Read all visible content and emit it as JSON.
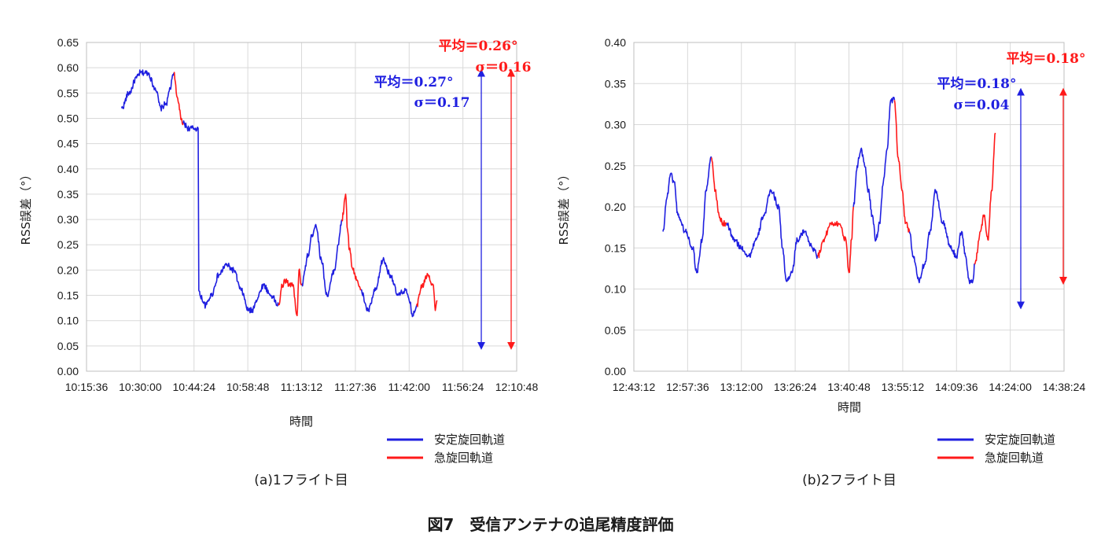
{
  "figure_caption": "図7　受信アンテナの追尾精度評価",
  "colors": {
    "stable": "#1f1fe0",
    "sharp": "#ff1a1a",
    "grid": "#d9d9d9"
  },
  "chart_data": [
    {
      "type": "line",
      "subtitle": "(a)1フライト目",
      "xlabel": "時間",
      "ylabel": "RSS誤差（°）",
      "ylim": [
        0,
        0.65
      ],
      "yticks": [
        "0.00",
        "0.05",
        "0.10",
        "0.15",
        "0.20",
        "0.25",
        "0.30",
        "0.35",
        "0.40",
        "0.45",
        "0.50",
        "0.55",
        "0.60",
        "0.65"
      ],
      "xlim": [
        "10:15:36",
        "12:10:48"
      ],
      "xticks": [
        "10:15:36",
        "10:30:00",
        "10:44:24",
        "10:58:48",
        "11:13:12",
        "11:27:36",
        "11:42:00",
        "11:56:24",
        "12:10:48"
      ],
      "grid": true,
      "legend": {
        "placement": "bottom-right",
        "entries": [
          "安定旋回軌道",
          "急旋回軌道"
        ]
      },
      "series": [
        {
          "name": "安定旋回軌道",
          "color": "#1f1fe0",
          "segments": [
            {
              "x": [
                "10:25:00",
                "10:27:00",
                "10:29:00",
                "10:30:00",
                "10:32:00",
                "10:34:00",
                "10:35:30",
                "10:37:00",
                "10:38:00",
                "10:39:00"
              ],
              "y": [
                0.52,
                0.55,
                0.58,
                0.59,
                0.59,
                0.56,
                0.52,
                0.53,
                0.56,
                0.59
              ]
            },
            {
              "x": [
                "10:41:30",
                "10:43:00",
                "10:44:24",
                "10:45:30",
                "10:45:40",
                "10:46:00",
                "10:47:30",
                "10:49:00",
                "10:51:00",
                "10:53:00",
                "10:55:00",
                "10:57:00",
                "10:59:00",
                "11:00:00",
                "11:01:00",
                "11:03:00",
                "11:05:00",
                "11:07:00"
              ],
              "y": [
                0.49,
                0.48,
                0.48,
                0.48,
                0.16,
                0.15,
                0.13,
                0.15,
                0.19,
                0.21,
                0.2,
                0.16,
                0.12,
                0.12,
                0.14,
                0.17,
                0.15,
                0.13
              ]
            },
            {
              "x": [
                "11:13:12",
                "11:15:00",
                "11:16:00",
                "11:17:00",
                "11:18:30",
                "11:20:00",
                "11:22:00",
                "11:23:00",
                "11:24:00"
              ],
              "y": [
                0.17,
                0.23,
                0.27,
                0.29,
                0.22,
                0.15,
                0.2,
                0.25,
                0.3
              ]
            },
            {
              "x": [
                "11:29:00",
                "11:31:00",
                "11:33:00",
                "11:35:00",
                "11:37:00",
                "11:39:00",
                "11:41:00",
                "11:42:00",
                "11:43:00",
                "11:44:00"
              ],
              "y": [
                0.16,
                0.12,
                0.16,
                0.22,
                0.19,
                0.15,
                0.16,
                0.14,
                0.11,
                0.13
              ]
            }
          ]
        },
        {
          "name": "急旋回軌道",
          "color": "#ff1a1a",
          "segments": [
            {
              "x": [
                "10:39:00",
                "10:40:00",
                "10:41:00",
                "10:41:30"
              ],
              "y": [
                0.59,
                0.54,
                0.5,
                0.49
              ]
            },
            {
              "x": [
                "11:07:00",
                "11:08:00",
                "11:09:00",
                "11:10:00",
                "11:11:00",
                "11:11:40",
                "11:12:00",
                "11:12:30",
                "11:13:12"
              ],
              "y": [
                0.13,
                0.17,
                0.18,
                0.17,
                0.17,
                0.12,
                0.11,
                0.2,
                0.17
              ]
            },
            {
              "x": [
                "11:24:00",
                "11:25:00",
                "11:25:30",
                "11:26:00",
                "11:27:00",
                "11:28:00",
                "11:29:00"
              ],
              "y": [
                0.3,
                0.35,
                0.28,
                0.24,
                0.2,
                0.18,
                0.16
              ]
            },
            {
              "x": [
                "11:44:00",
                "11:45:30",
                "11:47:00",
                "11:48:30",
                "11:49:00",
                "11:49:30"
              ],
              "y": [
                0.13,
                0.17,
                0.19,
                0.17,
                0.12,
                0.14
              ]
            }
          ]
        }
      ],
      "annotations": {
        "blue": {
          "mean": "平均＝0.27°",
          "sigma": "σ＝0.17",
          "arrow_range": [
            0.05,
            0.59
          ]
        },
        "red": {
          "mean": "平均＝0.26°",
          "sigma": "σ＝0.16",
          "arrow_range": [
            0.05,
            0.59
          ]
        }
      }
    },
    {
      "type": "line",
      "subtitle": "(b)2フライト目",
      "xlabel": "時間",
      "ylabel": "RSS誤差（°）",
      "ylim": [
        0,
        0.4
      ],
      "yticks": [
        "0.00",
        "0.05",
        "0.10",
        "0.15",
        "0.20",
        "0.25",
        "0.30",
        "0.35",
        "0.40"
      ],
      "xlim": [
        "12:43:12",
        "14:38:24"
      ],
      "xticks": [
        "12:43:12",
        "12:57:36",
        "13:12:00",
        "13:26:24",
        "13:40:48",
        "13:55:12",
        "14:09:36",
        "14:24:00",
        "14:38:24"
      ],
      "grid": true,
      "legend": {
        "placement": "bottom-right",
        "entries": [
          "安定旋回軌道",
          "急旋回軌道"
        ]
      },
      "series": [
        {
          "name": "安定旋回軌道",
          "color": "#1f1fe0",
          "segments": [
            {
              "x": [
                "12:51:00",
                "12:52:00",
                "12:53:00",
                "12:54:00",
                "12:55:00",
                "12:57:00",
                "12:59:00",
                "13:00:00",
                "13:01:30",
                "13:02:30",
                "13:04:00"
              ],
              "y": [
                0.17,
                0.21,
                0.24,
                0.23,
                0.19,
                0.17,
                0.15,
                0.12,
                0.16,
                0.22,
                0.26
              ]
            },
            {
              "x": [
                "13:08:00",
                "13:10:00",
                "13:12:00",
                "13:14:00",
                "13:16:00",
                "13:18:00",
                "13:20:00",
                "13:22:00",
                "13:23:00",
                "13:24:00",
                "13:25:30",
                "13:27:00",
                "13:29:00",
                "13:31:00",
                "13:32:30"
              ],
              "y": [
                0.18,
                0.16,
                0.15,
                0.14,
                0.16,
                0.19,
                0.22,
                0.2,
                0.15,
                0.11,
                0.12,
                0.16,
                0.17,
                0.15,
                0.14
              ]
            },
            {
              "x": [
                "13:42:00",
                "13:43:00",
                "13:44:00",
                "13:45:00",
                "13:46:00",
                "13:47:00",
                "13:48:00",
                "13:49:00",
                "13:50:00",
                "13:51:00",
                "13:52:00",
                "13:53:00"
              ],
              "y": [
                0.2,
                0.25,
                0.27,
                0.25,
                0.22,
                0.19,
                0.16,
                0.18,
                0.23,
                0.27,
                0.33,
                0.33
              ]
            },
            {
              "x": [
                "13:57:00",
                "13:58:00",
                "13:59:30",
                "14:01:00",
                "14:02:30",
                "14:04:00",
                "14:06:00",
                "14:08:00",
                "14:09:36",
                "14:11:00",
                "14:12:00",
                "14:13:00",
                "14:14:00",
                "14:14:30"
              ],
              "y": [
                0.17,
                0.14,
                0.11,
                0.13,
                0.17,
                0.22,
                0.18,
                0.15,
                0.14,
                0.17,
                0.14,
                0.11,
                0.11,
                0.13
              ]
            }
          ]
        },
        {
          "name": "急旋回軌道",
          "color": "#ff1a1a",
          "segments": [
            {
              "x": [
                "13:04:00",
                "13:05:00",
                "13:06:00",
                "13:07:00",
                "13:08:00"
              ],
              "y": [
                0.26,
                0.22,
                0.19,
                0.18,
                0.18
              ]
            },
            {
              "x": [
                "13:32:30",
                "13:34:00",
                "13:36:00",
                "13:38:00",
                "13:40:00",
                "13:40:48",
                "13:41:30",
                "13:42:00"
              ],
              "y": [
                0.14,
                0.16,
                0.18,
                0.18,
                0.16,
                0.12,
                0.16,
                0.2
              ]
            },
            {
              "x": [
                "13:53:00",
                "13:54:00",
                "13:55:00",
                "13:56:00",
                "13:57:00"
              ],
              "y": [
                0.33,
                0.26,
                0.22,
                0.18,
                0.17
              ]
            },
            {
              "x": [
                "14:14:30",
                "14:16:00",
                "14:17:00",
                "14:18:00",
                "14:19:00",
                "14:20:00"
              ],
              "y": [
                0.13,
                0.17,
                0.19,
                0.16,
                0.22,
                0.29
              ]
            }
          ]
        }
      ],
      "annotations": {
        "blue": {
          "mean": "平均＝0.18°",
          "sigma": "σ＝0.04",
          "arrow_range": [
            0.08,
            0.34
          ]
        },
        "red": {
          "mean": "平均＝0.18°",
          "sigma": "",
          "arrow_range": [
            0.11,
            0.34
          ]
        }
      }
    }
  ]
}
